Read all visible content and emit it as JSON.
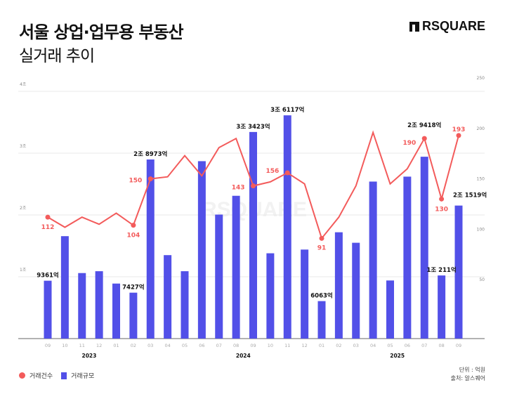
{
  "header": {
    "title": "서울 상업·업무용 부동산",
    "subtitle": "실거래 추이",
    "logo": "RSQUARE",
    "watermark": "RSQUARE"
  },
  "footer": {
    "unit": "단위 : 억원",
    "source": "출처: 알스퀘어"
  },
  "colors": {
    "bar": "#5250e8",
    "line": "#f35b5b",
    "grid": "#e8e8e8"
  },
  "chart_data": {
    "type": "bar+line",
    "categories": [
      "09",
      "10",
      "11",
      "12",
      "01",
      "02",
      "03",
      "04",
      "05",
      "06",
      "07",
      "08",
      "09",
      "10",
      "11",
      "12",
      "01",
      "02",
      "03",
      "04",
      "05",
      "06",
      "07",
      "08",
      "09"
    ],
    "year_labels": [
      {
        "label": "2023",
        "at_index": 2.5
      },
      {
        "label": "2024",
        "at_index": 11.5
      },
      {
        "label": "2025",
        "at_index": 20.5
      }
    ],
    "left_axis": {
      "ylim": [
        0,
        40000
      ],
      "ticks": [
        {
          "v": 10000,
          "label": "1조"
        },
        {
          "v": 20000,
          "label": "2조"
        },
        {
          "v": 30000,
          "label": "3조"
        },
        {
          "v": 40000,
          "label": "4조"
        }
      ]
    },
    "right_axis": {
      "ylim": [
        0,
        250
      ],
      "ticks": [
        50,
        100,
        150,
        200,
        250
      ]
    },
    "grid": true,
    "legend_position": "bottom-left",
    "series": [
      {
        "name": "거래규모",
        "kind": "bar",
        "axis": "left",
        "unit": "억원",
        "values": [
          9361,
          16570,
          10600,
          10900,
          8900,
          7427,
          28973,
          13500,
          10900,
          28700,
          20060,
          23100,
          33423,
          13800,
          36117,
          14400,
          6063,
          17200,
          15500,
          25400,
          9400,
          26200,
          29418,
          10211,
          21519
        ],
        "labels": {
          "0": "9361억",
          "5": "7427억",
          "6": "2조 8973억",
          "12": "3조 3423억",
          "14": "3조 6117억",
          "16": "6063억",
          "22": "2조 9418억",
          "23": "1조 211억",
          "24": "2조 1519억"
        }
      },
      {
        "name": "거래건수",
        "kind": "line",
        "axis": "right",
        "values": [
          112,
          102,
          112,
          105,
          116,
          104,
          150,
          152,
          173,
          153,
          181,
          190,
          143,
          147,
          156,
          145,
          91,
          112,
          143,
          196,
          145,
          160,
          190,
          130,
          193
        ],
        "labels": {
          "0": "112",
          "5": "104",
          "6": "150",
          "12": "143",
          "14": "156",
          "16": "91",
          "22": "190",
          "23": "130",
          "24": "193"
        }
      }
    ]
  }
}
